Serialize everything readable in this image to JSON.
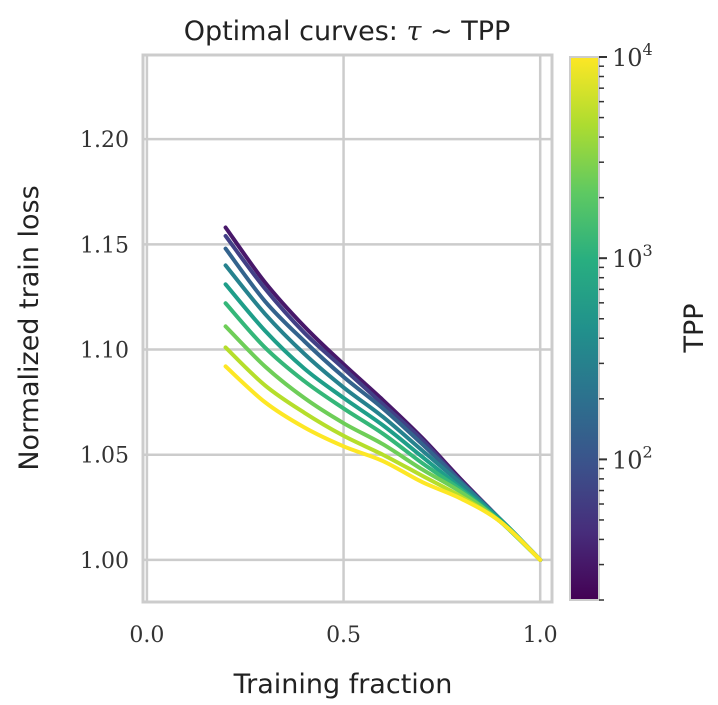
{
  "chart_data": {
    "type": "line",
    "title": "Optimal curves: τ ∼ TPP",
    "title_parts": {
      "prefix": "Optimal curves: ",
      "symbol": "τ",
      "suffix": " ∼ TPP"
    },
    "xlabel": "Training fraction",
    "ylabel": "Normalized train loss",
    "xlim": [
      -0.01,
      1.03
    ],
    "ylim": [
      0.98,
      1.24
    ],
    "xticks": [
      0.0,
      0.5,
      1.0
    ],
    "xtick_labels": [
      "0.0",
      "0.5",
      "1.0"
    ],
    "yticks": [
      1.0,
      1.05,
      1.1,
      1.15,
      1.2
    ],
    "ytick_labels": [
      "1.00",
      "1.05",
      "1.10",
      "1.15",
      "1.20"
    ],
    "grid": true,
    "x": [
      0.2,
      0.3,
      0.4,
      0.5,
      0.6,
      0.7,
      0.8,
      0.9,
      1.0
    ],
    "series": [
      {
        "color": "#48186a",
        "values": [
          1.158,
          1.132,
          1.111,
          1.093,
          1.076,
          1.058,
          1.038,
          1.019,
          1.0
        ]
      },
      {
        "color": "#424086",
        "values": [
          1.154,
          1.129,
          1.108,
          1.091,
          1.074,
          1.057,
          1.037,
          1.019,
          1.0
        ]
      },
      {
        "color": "#33638d",
        "values": [
          1.148,
          1.123,
          1.104,
          1.087,
          1.072,
          1.055,
          1.037,
          1.019,
          1.0
        ]
      },
      {
        "color": "#26828e",
        "values": [
          1.14,
          1.117,
          1.098,
          1.082,
          1.068,
          1.052,
          1.036,
          1.019,
          1.0
        ]
      },
      {
        "color": "#1f9e89",
        "values": [
          1.131,
          1.109,
          1.091,
          1.077,
          1.064,
          1.049,
          1.034,
          1.019,
          1.0
        ]
      },
      {
        "color": "#35b779",
        "values": [
          1.122,
          1.101,
          1.085,
          1.072,
          1.06,
          1.046,
          1.033,
          1.018,
          1.0
        ]
      },
      {
        "color": "#6ece58",
        "values": [
          1.111,
          1.092,
          1.077,
          1.065,
          1.055,
          1.043,
          1.032,
          1.018,
          1.0
        ]
      },
      {
        "color": "#b5de2b",
        "values": [
          1.101,
          1.083,
          1.07,
          1.059,
          1.05,
          1.04,
          1.03,
          1.018,
          1.0
        ]
      },
      {
        "color": "#fde725",
        "values": [
          1.092,
          1.075,
          1.063,
          1.054,
          1.047,
          1.037,
          1.029,
          1.018,
          1.0
        ]
      }
    ],
    "colorbar": {
      "label": "TPP",
      "scale": "log",
      "range": [
        20,
        10000
      ],
      "colormap": "viridis",
      "ticks": [
        100,
        1000,
        10000
      ],
      "tick_labels": [
        {
          "base": "10",
          "exp": "2"
        },
        {
          "base": "10",
          "exp": "3"
        },
        {
          "base": "10",
          "exp": "4"
        }
      ]
    }
  }
}
